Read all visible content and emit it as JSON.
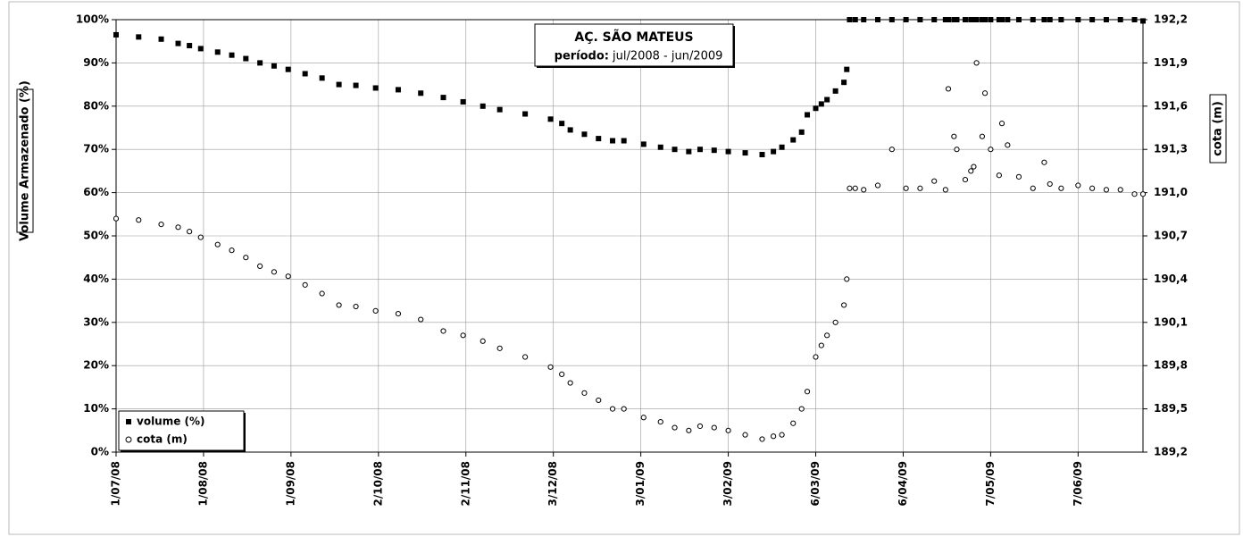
{
  "chart_data": {
    "type": "scatter",
    "title": "AÇ. SÃO MATEUS",
    "subtitle_label": "período:",
    "subtitle": "jul/2008 - jun/2009",
    "y_label": "Volume Armazenado (%)",
    "y2_label": "cota (m)",
    "legend": "bottom-left",
    "grid": true,
    "xlim": [
      "2008-07-01",
      "2009-06-30"
    ],
    "xticks": [
      {
        "value": "2008-07-01",
        "label": "1/07/08"
      },
      {
        "value": "2008-08-01",
        "label": "1/08/08"
      },
      {
        "value": "2008-09-01",
        "label": "1/09/08"
      },
      {
        "value": "2008-10-02",
        "label": "2/10/08"
      },
      {
        "value": "2008-11-02",
        "label": "2/11/08"
      },
      {
        "value": "2008-12-03",
        "label": "3/12/08"
      },
      {
        "value": "2009-01-03",
        "label": "3/01/09"
      },
      {
        "value": "2009-02-03",
        "label": "3/02/09"
      },
      {
        "value": "2009-03-06",
        "label": "6/03/09"
      },
      {
        "value": "2009-04-06",
        "label": "6/04/09"
      },
      {
        "value": "2009-05-07",
        "label": "7/05/09"
      },
      {
        "value": "2009-06-07",
        "label": "7/06/09"
      }
    ],
    "ylim": [
      0,
      100
    ],
    "yticks": [
      {
        "value": 0,
        "label": "0%"
      },
      {
        "value": 10,
        "label": "10%"
      },
      {
        "value": 20,
        "label": "20%"
      },
      {
        "value": 30,
        "label": "30%"
      },
      {
        "value": 40,
        "label": "40%"
      },
      {
        "value": 50,
        "label": "50%"
      },
      {
        "value": 60,
        "label": "60%"
      },
      {
        "value": 70,
        "label": "70%"
      },
      {
        "value": 80,
        "label": "80%"
      },
      {
        "value": 90,
        "label": "90%"
      },
      {
        "value": 100,
        "label": "100%"
      }
    ],
    "y2lim": [
      189.2,
      192.2
    ],
    "y2ticks": [
      {
        "value": 189.2,
        "label": "189,2"
      },
      {
        "value": 189.5,
        "label": "189,5"
      },
      {
        "value": 189.8,
        "label": "189,8"
      },
      {
        "value": 190.1,
        "label": "190,1"
      },
      {
        "value": 190.4,
        "label": "190,4"
      },
      {
        "value": 190.7,
        "label": "190,7"
      },
      {
        "value": 191.0,
        "label": "191,0"
      },
      {
        "value": 191.3,
        "label": "191,3"
      },
      {
        "value": 191.6,
        "label": "191,6"
      },
      {
        "value": 191.9,
        "label": "191,9"
      },
      {
        "value": 192.2,
        "label": "192,2"
      }
    ],
    "x": [
      "2008-07-01",
      "2008-07-09",
      "2008-07-17",
      "2008-07-23",
      "2008-07-27",
      "2008-07-31",
      "2008-08-06",
      "2008-08-11",
      "2008-08-16",
      "2008-08-21",
      "2008-08-26",
      "2008-08-31",
      "2008-09-06",
      "2008-09-12",
      "2008-09-18",
      "2008-09-24",
      "2008-10-01",
      "2008-10-09",
      "2008-10-17",
      "2008-10-25",
      "2008-11-01",
      "2008-11-08",
      "2008-11-14",
      "2008-11-23",
      "2008-12-02",
      "2008-12-06",
      "2008-12-09",
      "2008-12-14",
      "2008-12-19",
      "2008-12-24",
      "2008-12-28",
      "2009-01-04",
      "2009-01-10",
      "2009-01-15",
      "2009-01-20",
      "2009-01-24",
      "2009-01-29",
      "2009-02-03",
      "2009-02-09",
      "2009-02-15",
      "2009-02-19",
      "2009-02-22",
      "2009-02-26",
      "2009-03-01",
      "2009-03-03",
      "2009-03-06",
      "2009-03-08",
      "2009-03-10",
      "2009-03-13",
      "2009-03-16",
      "2009-03-17",
      "2009-03-18",
      "2009-03-20",
      "2009-03-23",
      "2009-03-28",
      "2009-04-02",
      "2009-04-07",
      "2009-04-12",
      "2009-04-17",
      "2009-04-21",
      "2009-04-22",
      "2009-04-24",
      "2009-04-25",
      "2009-04-28",
      "2009-04-30",
      "2009-05-01",
      "2009-05-02",
      "2009-05-04",
      "2009-05-05",
      "2009-05-07",
      "2009-05-10",
      "2009-05-11",
      "2009-05-13",
      "2009-05-17",
      "2009-05-22",
      "2009-05-26",
      "2009-05-28",
      "2009-06-01",
      "2009-06-07",
      "2009-06-12",
      "2009-06-17",
      "2009-06-22",
      "2009-06-27",
      "2009-06-30"
    ],
    "series": [
      {
        "name": "volume (%)",
        "color": "#000000",
        "marker": "square",
        "values": [
          96.5,
          96,
          95.5,
          94.5,
          94,
          93.3,
          92.5,
          91.8,
          91,
          90,
          89.3,
          88.5,
          87.5,
          86.5,
          85,
          84.8,
          84.2,
          83.8,
          83,
          82,
          81,
          80,
          79.2,
          78.2,
          77,
          76,
          74.5,
          73.5,
          72.5,
          72,
          72,
          71.2,
          70.5,
          70,
          69.5,
          70,
          69.8,
          69.5,
          69.2,
          68.8,
          69.5,
          70.5,
          72.2,
          74,
          78,
          79.5,
          80.5,
          81.5,
          83.5,
          85.5,
          88.5,
          100,
          100,
          100,
          100,
          100,
          100,
          100,
          100,
          100,
          100,
          100,
          100,
          100,
          100,
          100,
          100,
          100,
          100,
          100,
          100,
          100,
          100,
          100,
          100,
          100,
          100,
          100,
          100,
          100,
          100,
          100,
          100,
          99.7
        ]
      },
      {
        "name": "cota (m)",
        "color": "#000000",
        "marker": "circle",
        "axis": "y2",
        "values": [
          190.82,
          190.81,
          190.78,
          190.76,
          190.73,
          190.69,
          190.64,
          190.6,
          190.55,
          190.49,
          190.45,
          190.42,
          190.36,
          190.3,
          190.22,
          190.21,
          190.18,
          190.16,
          190.12,
          190.04,
          190.01,
          189.97,
          189.92,
          189.86,
          189.79,
          189.74,
          189.68,
          189.61,
          189.56,
          189.5,
          189.5,
          189.44,
          189.41,
          189.37,
          189.35,
          189.38,
          189.37,
          189.35,
          189.32,
          189.29,
          189.31,
          189.32,
          189.4,
          189.5,
          189.62,
          189.86,
          189.94,
          190.01,
          190.1,
          190.22,
          190.4,
          191.03,
          191.03,
          191.02,
          191.05,
          191.3,
          191.03,
          191.03,
          191.08,
          191.02,
          191.72,
          191.39,
          191.3,
          191.09,
          191.15,
          191.18,
          191.9,
          191.39,
          191.69,
          191.3,
          191.12,
          191.48,
          191.33,
          191.11,
          191.03,
          191.21,
          191.06,
          191.03,
          191.05,
          191.03,
          191.02,
          191.02,
          190.99,
          190.99
        ]
      }
    ]
  }
}
